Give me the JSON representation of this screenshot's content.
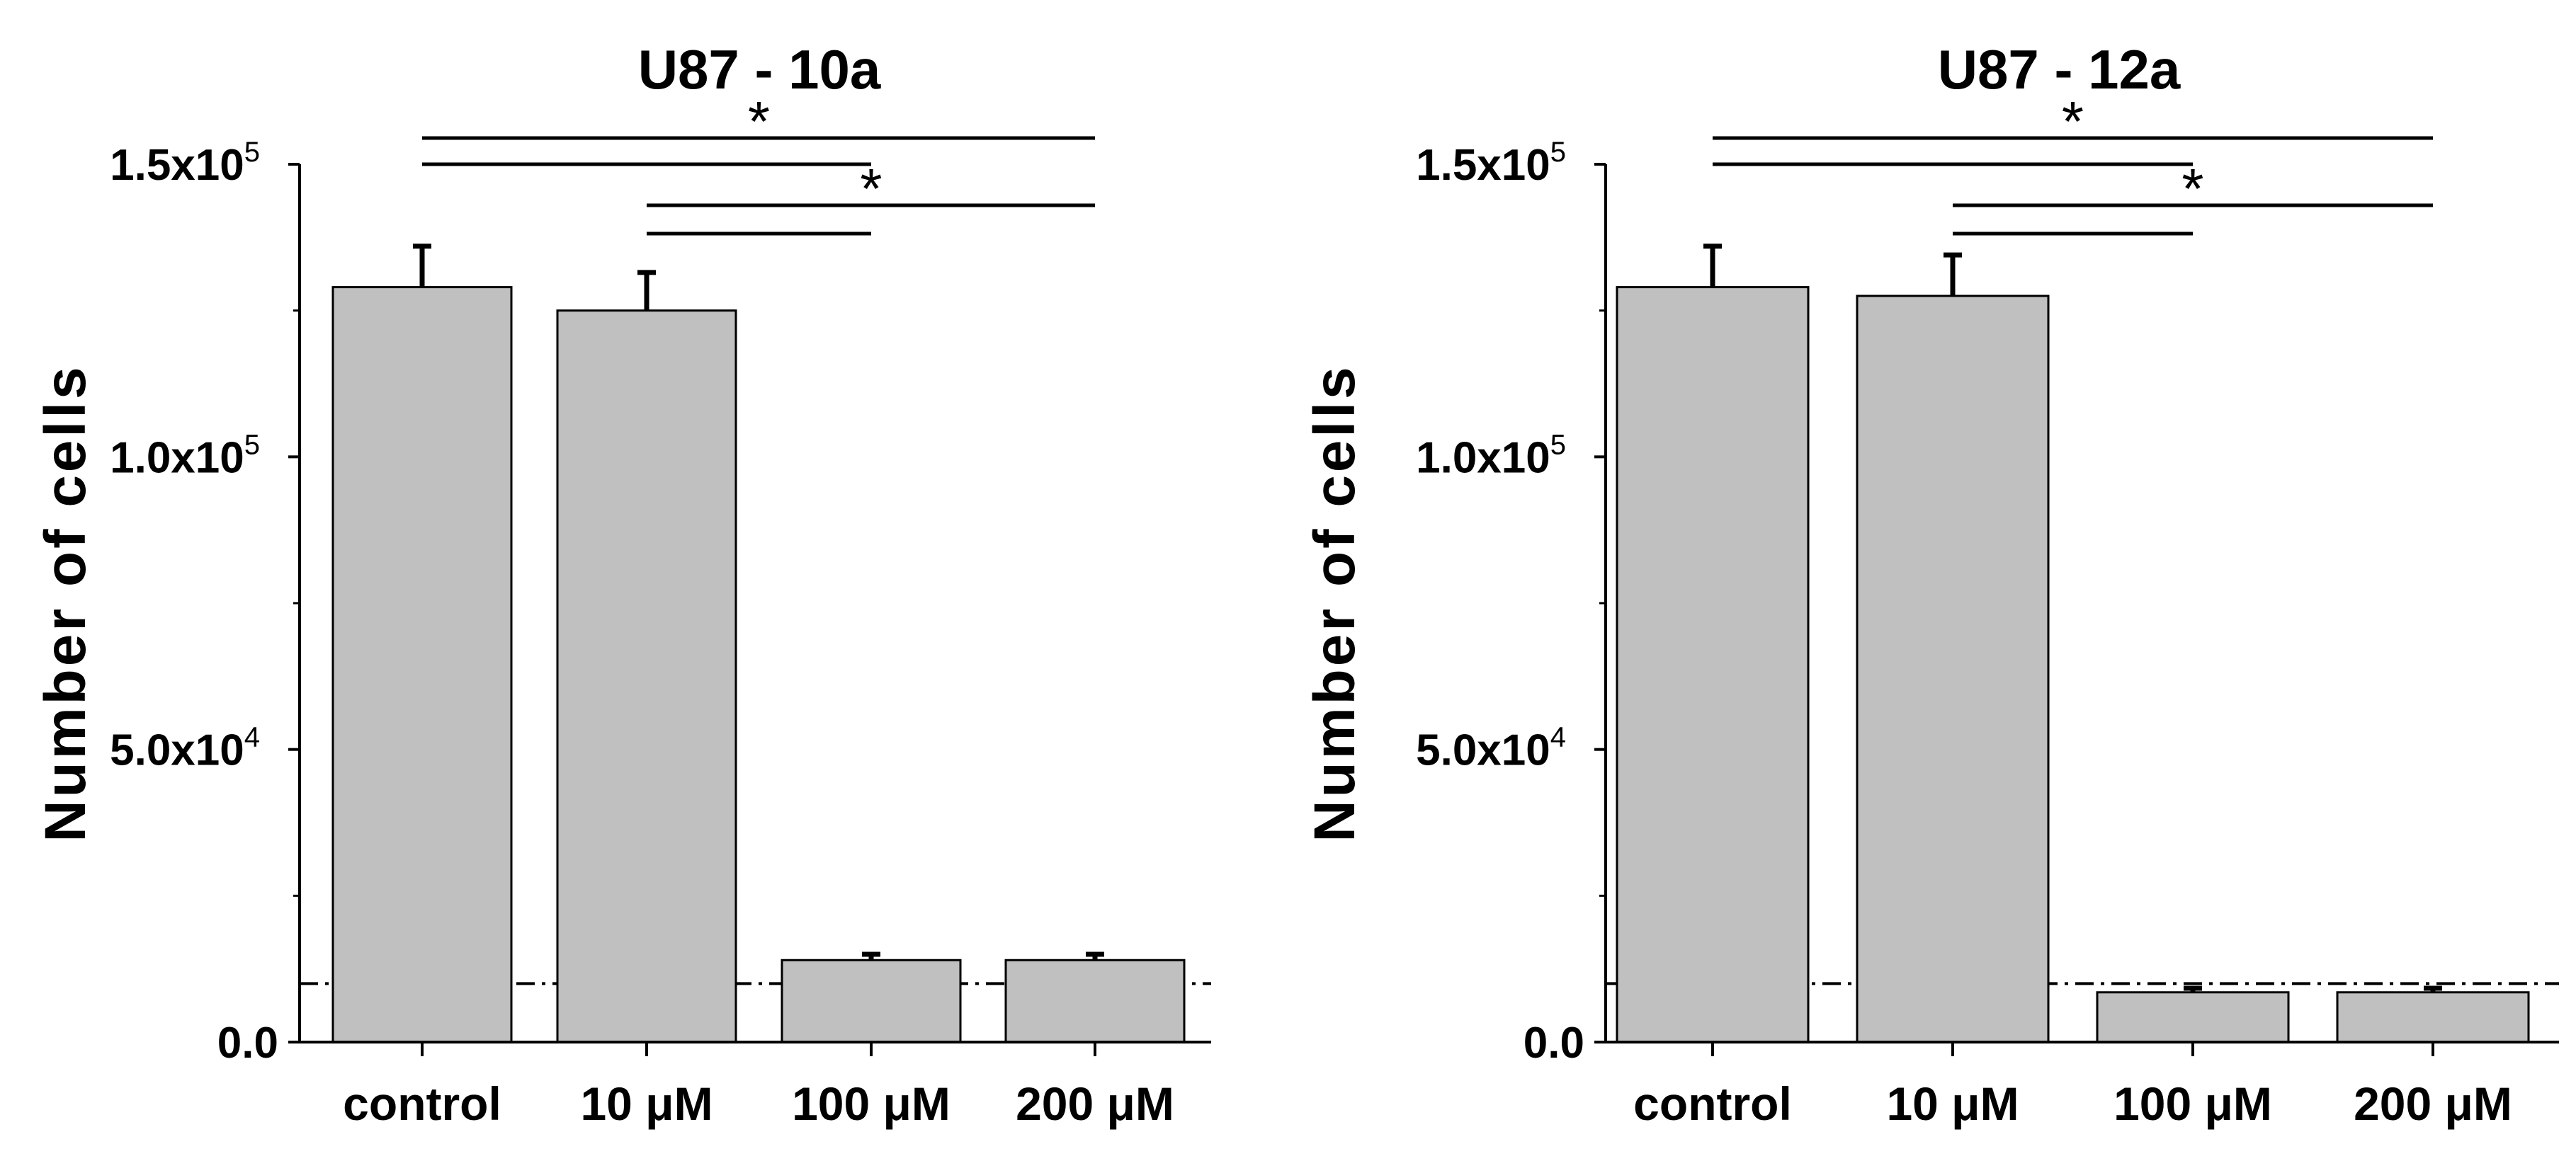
{
  "chart_data": [
    {
      "type": "bar",
      "title": "U87 - 10a",
      "xlabel": "",
      "ylabel": "Number of cells",
      "categories": [
        "control",
        "10 μM",
        "100 μM",
        "200 μM"
      ],
      "values": [
        129000,
        125000,
        14000,
        14000
      ],
      "errors": [
        7000,
        6500,
        1000,
        1000
      ],
      "ylim": [
        0,
        150000
      ],
      "yticks": [
        {
          "value": 0,
          "label": "0.0",
          "exp": ""
        },
        {
          "value": 50000,
          "label": "5.0x10",
          "exp": "4"
        },
        {
          "value": 100000,
          "label": "1.0x10",
          "exp": "5"
        },
        {
          "value": 150000,
          "label": "1.5x10",
          "exp": "5"
        }
      ],
      "minor_ticks": [
        25000,
        75000,
        125000
      ],
      "reference_line": 10000,
      "significance": [
        {
          "from": 0,
          "to": 3,
          "level": 0,
          "label": ""
        },
        {
          "from": 0,
          "to": 2,
          "level": 1,
          "label": ""
        },
        {
          "from": 1,
          "to": 3,
          "level": 2,
          "label": ""
        },
        {
          "from": 1,
          "to": 2,
          "level": 3,
          "label": ""
        }
      ],
      "stars": [
        {
          "x": 1.5,
          "level": 0,
          "label": "*"
        },
        {
          "x": 2.0,
          "level": 2,
          "label": "*"
        }
      ],
      "grid": false,
      "bar_color": "#c0c0c0"
    },
    {
      "type": "bar",
      "title": "U87 - 12a",
      "xlabel": "",
      "ylabel": "Number of cells",
      "categories": [
        "control",
        "10 μM",
        "100 μM",
        "200 μM"
      ],
      "values": [
        129000,
        127500,
        8500,
        8500
      ],
      "errors": [
        7000,
        7000,
        700,
        700
      ],
      "ylim": [
        0,
        150000
      ],
      "yticks": [
        {
          "value": 0,
          "label": "0.0",
          "exp": ""
        },
        {
          "value": 50000,
          "label": "5.0x10",
          "exp": "4"
        },
        {
          "value": 100000,
          "label": "1.0x10",
          "exp": "5"
        },
        {
          "value": 150000,
          "label": "1.5x10",
          "exp": "5"
        }
      ],
      "minor_ticks": [
        25000,
        75000,
        125000
      ],
      "reference_line": 10000,
      "significance": [
        {
          "from": 0,
          "to": 3,
          "level": 0,
          "label": ""
        },
        {
          "from": 0,
          "to": 2,
          "level": 1,
          "label": ""
        },
        {
          "from": 1,
          "to": 3,
          "level": 2,
          "label": ""
        },
        {
          "from": 1,
          "to": 2,
          "level": 3,
          "label": ""
        }
      ],
      "stars": [
        {
          "x": 1.5,
          "level": 0,
          "label": "*"
        },
        {
          "x": 2.0,
          "level": 2,
          "label": "*"
        }
      ],
      "grid": false,
      "bar_color": "#c0c0c0"
    }
  ]
}
